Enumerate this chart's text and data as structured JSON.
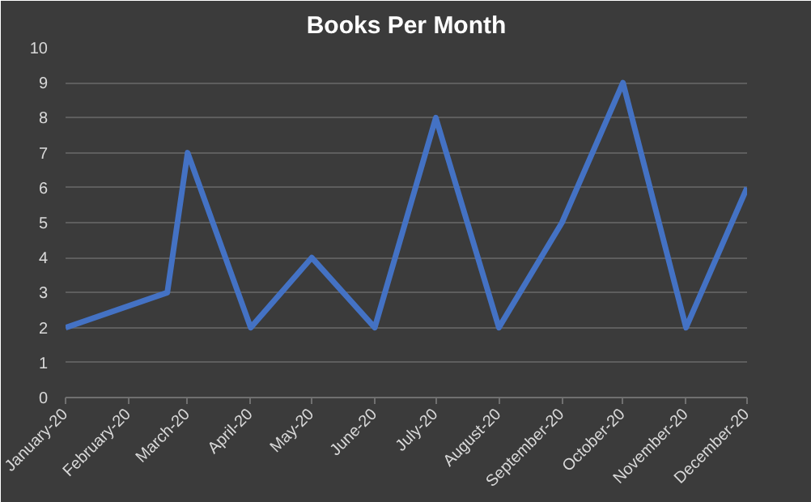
{
  "chart_data": {
    "type": "line",
    "title": "Books Per Month",
    "x": [
      "2020-01-01",
      "2020-02-20",
      "2020-03-01",
      "2020-04-01",
      "2020-05-01",
      "2020-06-01",
      "2020-07-01",
      "2020-08-01",
      "2020-09-01",
      "2020-10-01",
      "2020-11-01",
      "2020-12-01"
    ],
    "series": [
      {
        "color": "#4472c4",
        "values": [
          2,
          3,
          7,
          2,
          4,
          2,
          8,
          2,
          5,
          9,
          2,
          6
        ]
      }
    ],
    "xlim": [
      "2020-01-01",
      "2020-12-01"
    ],
    "xticks": [
      {
        "value": "2020-01-01",
        "label": "January-20"
      },
      {
        "value": "2020-02-01",
        "label": "February-20"
      },
      {
        "value": "2020-03-01",
        "label": "March-20"
      },
      {
        "value": "2020-04-01",
        "label": "April-20"
      },
      {
        "value": "2020-05-01",
        "label": "May-20"
      },
      {
        "value": "2020-06-01",
        "label": "June-20"
      },
      {
        "value": "2020-07-01",
        "label": "July-20"
      },
      {
        "value": "2020-08-01",
        "label": "August-20"
      },
      {
        "value": "2020-09-01",
        "label": "September-20"
      },
      {
        "value": "2020-10-01",
        "label": "October-20"
      },
      {
        "value": "2020-11-01",
        "label": "November-20"
      },
      {
        "value": "2020-12-01",
        "label": "December-20"
      }
    ],
    "ylim": [
      0,
      10
    ],
    "yticks": [
      0,
      1,
      2,
      3,
      4,
      5,
      6,
      7,
      8,
      9,
      10
    ],
    "grid": "y",
    "marker": "none",
    "line_style": "solid"
  }
}
